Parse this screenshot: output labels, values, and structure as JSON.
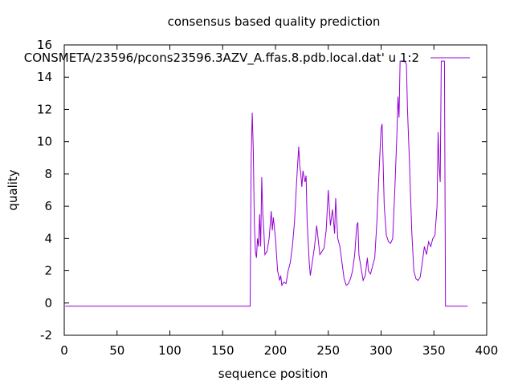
{
  "chart_data": {
    "type": "line",
    "title": "consensus based quality prediction",
    "xlabel": "sequence position",
    "ylabel": "quality",
    "xlim": [
      0,
      400
    ],
    "ylim": [
      -2,
      16
    ],
    "x_ticks": [
      "0",
      "50",
      "100",
      "150",
      "200",
      "250",
      "300",
      "350",
      "400"
    ],
    "y_ticks": [
      "-2",
      "0",
      "2",
      "4",
      "6",
      "8",
      "10",
      "12",
      "14",
      "16"
    ],
    "grid": false,
    "legend_position": "top-right",
    "series": [
      {
        "name": "CONSMETA/23596/pcons23596.3AZV_A.ffas.8.pdb.local.dat' u 1:2",
        "color": "#9400d3",
        "points": [
          [
            1,
            -0.2
          ],
          [
            176,
            -0.2
          ],
          [
            177,
            9.0
          ],
          [
            178,
            11.8
          ],
          [
            179,
            9.5
          ],
          [
            180,
            5.0
          ],
          [
            181,
            3.2
          ],
          [
            182,
            2.8
          ],
          [
            183,
            4.0
          ],
          [
            184,
            3.5
          ],
          [
            185,
            5.5
          ],
          [
            186,
            3.5
          ],
          [
            187,
            7.8
          ],
          [
            188,
            5.5
          ],
          [
            189,
            4.5
          ],
          [
            190,
            3.0
          ],
          [
            192,
            3.2
          ],
          [
            194,
            4.0
          ],
          [
            196,
            5.7
          ],
          [
            197,
            4.5
          ],
          [
            198,
            5.3
          ],
          [
            200,
            4.0
          ],
          [
            202,
            2.0
          ],
          [
            204,
            1.4
          ],
          [
            205,
            1.7
          ],
          [
            206,
            1.1
          ],
          [
            208,
            1.3
          ],
          [
            210,
            1.2
          ],
          [
            212,
            2.0
          ],
          [
            214,
            2.5
          ],
          [
            216,
            3.5
          ],
          [
            218,
            5.0
          ],
          [
            220,
            7.5
          ],
          [
            222,
            9.7
          ],
          [
            223,
            8.5
          ],
          [
            224,
            8.0
          ],
          [
            225,
            7.2
          ],
          [
            226,
            8.2
          ],
          [
            228,
            7.5
          ],
          [
            229,
            7.9
          ],
          [
            230,
            5.0
          ],
          [
            232,
            2.5
          ],
          [
            233,
            1.7
          ],
          [
            235,
            2.6
          ],
          [
            237,
            3.5
          ],
          [
            239,
            4.8
          ],
          [
            241,
            3.6
          ],
          [
            242,
            3.0
          ],
          [
            244,
            3.2
          ],
          [
            246,
            3.4
          ],
          [
            248,
            4.5
          ],
          [
            250,
            7.0
          ],
          [
            252,
            4.8
          ],
          [
            254,
            5.8
          ],
          [
            256,
            4.3
          ],
          [
            257,
            6.5
          ],
          [
            259,
            4.0
          ],
          [
            261,
            3.5
          ],
          [
            263,
            2.5
          ],
          [
            265,
            1.5
          ],
          [
            267,
            1.1
          ],
          [
            269,
            1.2
          ],
          [
            271,
            1.5
          ],
          [
            273,
            2.0
          ],
          [
            275,
            3.0
          ],
          [
            277,
            4.8
          ],
          [
            278,
            5.0
          ],
          [
            279,
            3.0
          ],
          [
            281,
            2.2
          ],
          [
            283,
            1.4
          ],
          [
            285,
            1.7
          ],
          [
            287,
            2.8
          ],
          [
            288,
            2.0
          ],
          [
            290,
            1.8
          ],
          [
            292,
            2.3
          ],
          [
            294,
            2.8
          ],
          [
            296,
            5.0
          ],
          [
            298,
            8.0
          ],
          [
            300,
            10.8
          ],
          [
            301,
            11.1
          ],
          [
            303,
            6.0
          ],
          [
            305,
            4.2
          ],
          [
            307,
            3.8
          ],
          [
            309,
            3.7
          ],
          [
            311,
            4.0
          ],
          [
            313,
            7.0
          ],
          [
            315,
            10.5
          ],
          [
            316,
            12.8
          ],
          [
            317,
            11.5
          ],
          [
            318,
            15.0
          ],
          [
            320,
            15.0
          ],
          [
            322,
            15.0
          ],
          [
            324,
            14.8
          ],
          [
            325,
            12.0
          ],
          [
            327,
            8.5
          ],
          [
            329,
            4.5
          ],
          [
            331,
            2.0
          ],
          [
            333,
            1.5
          ],
          [
            335,
            1.4
          ],
          [
            337,
            1.6
          ],
          [
            339,
            2.5
          ],
          [
            341,
            3.5
          ],
          [
            343,
            3.0
          ],
          [
            345,
            3.8
          ],
          [
            347,
            3.5
          ],
          [
            349,
            4.0
          ],
          [
            351,
            4.2
          ],
          [
            353,
            6.0
          ],
          [
            354,
            10.6
          ],
          [
            355,
            8.5
          ],
          [
            356,
            7.5
          ],
          [
            357,
            15.0
          ],
          [
            360,
            15.0
          ],
          [
            361,
            -0.2
          ],
          [
            382,
            -0.2
          ]
        ]
      }
    ]
  }
}
